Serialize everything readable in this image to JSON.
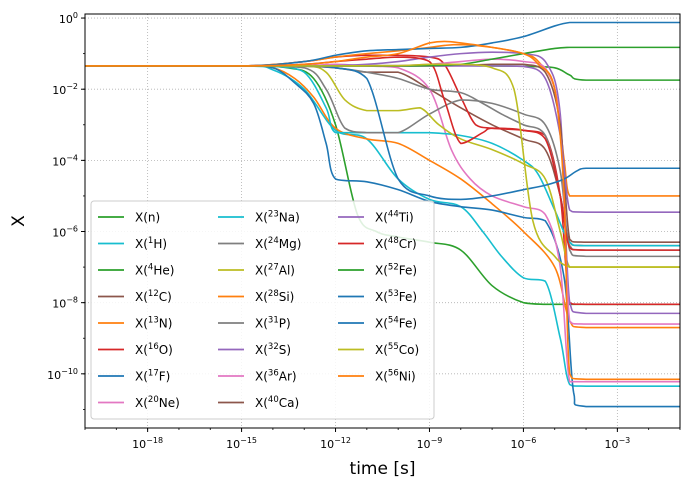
{
  "chart_data": {
    "type": "line",
    "title": "",
    "xlabel": "time [s]",
    "ylabel": "X",
    "xscale": "log",
    "yscale": "log",
    "xlim": [
      1e-20,
      0.1
    ],
    "ylim": [
      3e-12,
      1.3
    ],
    "x_ticks": [
      {
        "value": 1e-18,
        "base": "10",
        "exp": "−18"
      },
      {
        "value": 1e-15,
        "base": "10",
        "exp": "−15"
      },
      {
        "value": 1e-12,
        "base": "10",
        "exp": "−12"
      },
      {
        "value": 1e-09,
        "base": "10",
        "exp": "−9"
      },
      {
        "value": 1e-06,
        "base": "10",
        "exp": "−6"
      },
      {
        "value": 0.001,
        "base": "10",
        "exp": "−3"
      }
    ],
    "y_ticks": [
      {
        "value": 1,
        "base": "10",
        "exp": "0"
      },
      {
        "value": 0.01,
        "base": "10",
        "exp": "−2"
      },
      {
        "value": 0.0001,
        "base": "10",
        "exp": "−4"
      },
      {
        "value": 1e-06,
        "base": "10",
        "exp": "−6"
      },
      {
        "value": 1e-08,
        "base": "10",
        "exp": "−8"
      },
      {
        "value": 1e-10,
        "base": "10",
        "exp": "−10"
      }
    ],
    "grid": true,
    "legend_position": "lower-left",
    "legend_columns": 3,
    "series": [
      {
        "name": "X(n)",
        "label_pre": "X(n)",
        "label_sup": "",
        "label_post": "",
        "color": "#2ca02c",
        "x": [
          1e-20,
          1e-15,
          3e-14,
          2e-13,
          1e-12,
          5e-12,
          2e-11,
          1e-10,
          1e-09,
          1e-08,
          1e-07,
          1e-06,
          5e-06,
          2e-05,
          4e-05,
          0.1
        ],
        "y": [
          0.045,
          0.045,
          0.04,
          0.02,
          0.001,
          3e-06,
          1e-06,
          7e-07,
          5e-07,
          3e-07,
          3e-08,
          1e-08,
          9e-09,
          9e-09,
          9e-09,
          9e-09
        ]
      },
      {
        "name": "X(1H)",
        "label_pre": "X(",
        "label_sup": "1",
        "label_post": "H)",
        "color": "#17becf",
        "x": [
          1e-20,
          1e-15,
          1e-14,
          1e-13,
          1e-12,
          1e-11,
          1e-10,
          1e-09,
          1e-08,
          5e-08,
          2e-07,
          1e-06,
          5e-06,
          1.5e-05,
          3e-05,
          0.0001,
          0.1
        ],
        "y": [
          0.045,
          0.045,
          0.035,
          0.01,
          0.0007,
          0.0004,
          3e-05,
          8e-06,
          5e-06,
          1e-06,
          2e-07,
          5e-08,
          4e-08,
          1e-09,
          5e-11,
          4.5e-11,
          4.5e-11
        ]
      },
      {
        "name": "X(4He)",
        "label_pre": "X(",
        "label_sup": "4",
        "label_post": "He)",
        "color": "#2ca02c",
        "x": [
          1e-20,
          1e-15,
          1e-13,
          1e-12,
          1e-10,
          1e-09,
          1e-08,
          1e-07,
          1e-06,
          1e-05,
          3e-05,
          0.0001,
          0.1
        ],
        "y": [
          0.045,
          0.045,
          0.045,
          0.046,
          0.046,
          0.047,
          0.046,
          0.045,
          0.044,
          0.04,
          0.025,
          0.018,
          0.018
        ]
      },
      {
        "name": "X(12C)",
        "label_pre": "X(",
        "label_sup": "12",
        "label_post": "C)",
        "color": "#8c564b",
        "x": [
          1e-20,
          1e-15,
          1e-13,
          1e-12,
          1e-11,
          1e-10,
          1e-09,
          1e-08,
          1e-07,
          1e-06,
          5e-06,
          1.5e-05,
          3e-05,
          0.0001,
          0.1
        ],
        "y": [
          0.045,
          0.045,
          0.044,
          0.04,
          0.03,
          0.03,
          0.01,
          0.003,
          0.001,
          0.0004,
          0.0002,
          1e-05,
          5e-07,
          4e-07,
          4e-07
        ]
      },
      {
        "name": "X(13N)",
        "label_pre": "X(",
        "label_sup": "13",
        "label_post": "N)",
        "color": "#ff7f0e",
        "x": [
          1e-20,
          1e-15,
          1e-14,
          5e-14,
          2e-13,
          1e-12,
          1e-11,
          1e-10,
          1e-09,
          1e-08,
          1e-07,
          1e-06,
          1e-05,
          3e-05,
          0.0001,
          0.1
        ],
        "y": [
          0.045,
          0.045,
          0.04,
          0.02,
          0.006,
          0.0008,
          0.0004,
          0.0003,
          0.0001,
          3e-05,
          6e-06,
          1e-06,
          1e-07,
          3e-09,
          2e-09,
          2e-09
        ]
      },
      {
        "name": "X(16O)",
        "label_pre": "X(",
        "label_sup": "16",
        "label_post": "O)",
        "color": "#d62728",
        "x": [
          1e-20,
          1e-15,
          1e-13,
          1e-12,
          1e-11,
          1e-10,
          1e-09,
          3e-09,
          1e-08,
          3e-08,
          1e-07,
          1e-06,
          5e-06,
          1.5e-05,
          3e-05,
          0.0001,
          0.1
        ],
        "y": [
          0.045,
          0.045,
          0.06,
          0.08,
          0.09,
          0.09,
          0.08,
          0.05,
          0.006,
          0.001,
          0.0008,
          0.0007,
          0.0005,
          1e-05,
          1e-08,
          9e-09,
          9e-09
        ]
      },
      {
        "name": "X(17F)",
        "label_pre": "X(",
        "label_sup": "17",
        "label_post": "F)",
        "color": "#1f77b4",
        "x": [
          1e-20,
          1e-15,
          1e-14,
          5e-14,
          2e-13,
          5e-13,
          1e-12,
          1e-11,
          1e-10,
          1e-09,
          1e-08,
          1e-07,
          1e-06,
          5e-06,
          2e-05,
          4e-05,
          0.0001,
          0.1
        ],
        "y": [
          0.045,
          0.045,
          0.04,
          0.015,
          0.004,
          0.0003,
          3e-05,
          2.5e-05,
          1.5e-05,
          7e-06,
          5e-06,
          4e-06,
          2.5e-06,
          2e-06,
          5e-08,
          3e-11,
          1.2e-11,
          1.2e-11
        ]
      },
      {
        "name": "X(20Ne)",
        "label_pre": "X(",
        "label_sup": "20",
        "label_post": "Ne)",
        "color": "#e377c2",
        "x": [
          1e-20,
          1e-15,
          1e-13,
          1e-12,
          1e-11,
          1e-10,
          1e-09,
          5e-09,
          2e-08,
          1e-07,
          1e-06,
          5e-06,
          1.5e-05,
          3e-05,
          0.0001,
          0.1
        ],
        "y": [
          0.045,
          0.045,
          0.046,
          0.05,
          0.045,
          0.04,
          0.01,
          0.0002,
          3e-05,
          1e-05,
          5e-06,
          3e-06,
          1e-07,
          6e-11,
          6e-11,
          6e-11
        ]
      },
      {
        "name": "X(23Na)",
        "label_pre": "X(",
        "label_sup": "23",
        "label_post": "Na)",
        "color": "#17becf",
        "x": [
          1e-20,
          1e-15,
          1e-14,
          1e-13,
          5e-13,
          1e-12,
          1e-11,
          1e-10,
          1e-09,
          1e-08,
          1e-07,
          1e-06,
          3e-06,
          1e-05,
          3e-05,
          0.0001,
          0.1
        ],
        "y": [
          0.045,
          0.045,
          0.044,
          0.03,
          0.003,
          0.0006,
          0.0006,
          0.0006,
          0.0006,
          0.0005,
          0.0003,
          0.0001,
          4e-05,
          4e-06,
          5e-07,
          4e-07,
          4e-07
        ]
      },
      {
        "name": "X(24Mg)",
        "label_pre": "X(",
        "label_sup": "24",
        "label_post": "Mg)",
        "color": "#7f7f7f",
        "x": [
          1e-20,
          1e-15,
          1e-13,
          5e-13,
          2e-12,
          1e-11,
          1e-10,
          1e-09,
          1e-08,
          1e-07,
          1e-06,
          5e-06,
          1.5e-05,
          3e-05,
          0.0001,
          0.1
        ],
        "y": [
          0.045,
          0.045,
          0.04,
          0.01,
          0.0008,
          0.0006,
          0.0006,
          0.002,
          0.005,
          0.004,
          0.002,
          0.001,
          5e-05,
          3e-07,
          2e-07,
          2e-07
        ]
      },
      {
        "name": "X(27Al)",
        "label_pre": "X(",
        "label_sup": "27",
        "label_post": "Al)",
        "color": "#bcbd22",
        "x": [
          1e-20,
          1e-15,
          1e-13,
          5e-13,
          2e-12,
          1e-11,
          1e-10,
          5e-10,
          2e-09,
          1e-08,
          1e-07,
          1e-06,
          5e-06,
          1.5e-05,
          3e-05,
          0.0001,
          0.1
        ],
        "y": [
          0.045,
          0.045,
          0.045,
          0.03,
          0.005,
          0.0025,
          0.0025,
          0.003,
          0.001,
          0.0004,
          0.0002,
          8e-05,
          3e-05,
          1e-06,
          1e-07,
          1e-07,
          1e-07
        ]
      },
      {
        "name": "X(28Si)",
        "label_pre": "X(",
        "label_sup": "28",
        "label_post": "Si)",
        "color": "#ff7f0e",
        "x": [
          1e-20,
          1e-15,
          1e-13,
          1e-12,
          1e-11,
          1e-10,
          1e-09,
          3e-09,
          1e-08,
          1e-07,
          1e-06,
          3e-06,
          1e-05,
          2e-05,
          3e-05,
          0.0001,
          0.1
        ],
        "y": [
          0.045,
          0.045,
          0.06,
          0.08,
          0.1,
          0.12,
          0.15,
          0.17,
          0.18,
          0.15,
          0.1,
          0.06,
          0.01,
          0.0001,
          1e-05,
          1e-05,
          1e-05
        ]
      },
      {
        "name": "X(31P)",
        "label_pre": "X(",
        "label_sup": "31",
        "label_post": "P)",
        "color": "#7f7f7f",
        "x": [
          1e-20,
          1e-15,
          1e-13,
          1e-12,
          1e-11,
          1e-10,
          1e-09,
          1e-08,
          5e-08,
          2e-07,
          1e-06,
          5e-06,
          1.5e-05,
          3e-05,
          0.0001,
          0.1
        ],
        "y": [
          0.045,
          0.045,
          0.045,
          0.04,
          0.03,
          0.02,
          0.01,
          0.008,
          0.004,
          0.002,
          0.001,
          0.0005,
          1e-05,
          4e-07,
          3e-07,
          3e-07
        ]
      },
      {
        "name": "X(32S)",
        "label_pre": "X(",
        "label_sup": "32",
        "label_post": "S)",
        "color": "#9467bd",
        "x": [
          1e-20,
          1e-15,
          1e-13,
          1e-12,
          1e-11,
          1e-10,
          1e-09,
          1e-08,
          1e-07,
          1e-06,
          5e-06,
          1.5e-05,
          3e-05,
          0.0001,
          0.1
        ],
        "y": [
          0.045,
          0.045,
          0.045,
          0.046,
          0.05,
          0.06,
          0.08,
          0.1,
          0.11,
          0.1,
          0.06,
          0.002,
          1e-08,
          5e-09,
          5e-09
        ]
      },
      {
        "name": "X(36Ar)",
        "label_pre": "X(",
        "label_sup": "36",
        "label_post": "Ar)",
        "color": "#e377c2",
        "x": [
          1e-20,
          1e-15,
          1e-13,
          1e-12,
          1e-11,
          1e-10,
          1e-09,
          1e-08,
          1e-07,
          1e-06,
          5e-06,
          1.5e-05,
          3e-05,
          0.0001,
          0.1
        ],
        "y": [
          0.045,
          0.045,
          0.045,
          0.045,
          0.046,
          0.046,
          0.05,
          0.06,
          0.07,
          0.06,
          0.04,
          0.001,
          3e-09,
          2.5e-09,
          2.5e-09
        ]
      },
      {
        "name": "X(40Ca)",
        "label_pre": "X(",
        "label_sup": "40",
        "label_post": "Ca)",
        "color": "#8c564b",
        "x": [
          1e-20,
          1e-15,
          1e-12,
          1e-10,
          1e-09,
          1e-08,
          1e-07,
          1e-06,
          5e-06,
          1.5e-05,
          3e-05,
          0.0001,
          0.1
        ],
        "y": [
          0.045,
          0.045,
          0.045,
          0.045,
          0.045,
          0.046,
          0.05,
          0.05,
          0.03,
          0.001,
          6e-07,
          5e-07,
          5e-07
        ]
      },
      {
        "name": "X(44Ti)",
        "label_pre": "X(",
        "label_sup": "44",
        "label_post": "Ti)",
        "color": "#9467bd",
        "x": [
          1e-20,
          1e-15,
          1e-12,
          1e-10,
          1e-09,
          1e-08,
          1e-07,
          1e-06,
          5e-06,
          1.5e-05,
          3e-05,
          0.0001,
          0.1
        ],
        "y": [
          0.045,
          0.045,
          0.045,
          0.045,
          0.045,
          0.045,
          0.045,
          0.044,
          0.02,
          0.0005,
          4e-06,
          3.5e-06,
          3.5e-06
        ]
      },
      {
        "name": "X(48Cr)",
        "label_pre": "X(",
        "label_sup": "48",
        "label_post": "Cr)",
        "color": "#d62728",
        "x": [
          1e-20,
          1e-15,
          1e-13,
          1e-12,
          1e-11,
          1e-10,
          1e-09,
          3e-09,
          1e-08,
          5e-08,
          1e-07,
          1e-06,
          5e-06,
          1.5e-05,
          3e-05,
          0.0001,
          0.1
        ],
        "y": [
          0.045,
          0.045,
          0.05,
          0.06,
          0.07,
          0.08,
          0.06,
          0.005,
          0.0003,
          0.0006,
          0.0008,
          0.0007,
          0.0004,
          1e-05,
          3.5e-07,
          3e-07,
          3e-07
        ]
      },
      {
        "name": "X(52Fe)",
        "label_pre": "X(",
        "label_sup": "52",
        "label_post": "Fe)",
        "color": "#2ca02c",
        "x": [
          1e-20,
          1e-15,
          1e-12,
          1e-10,
          1e-09,
          1e-08,
          1e-07,
          1e-06,
          1e-05,
          3e-05,
          0.0001,
          0.001,
          0.1
        ],
        "y": [
          0.045,
          0.045,
          0.045,
          0.045,
          0.046,
          0.05,
          0.07,
          0.1,
          0.14,
          0.15,
          0.15,
          0.15,
          0.15
        ]
      },
      {
        "name": "X(53Fe)",
        "label_pre": "X(",
        "label_sup": "53",
        "label_post": "Fe)",
        "color": "#1f77b4",
        "x": [
          1e-20,
          1e-15,
          1e-13,
          1e-12,
          1e-11,
          1e-10,
          1e-09,
          1e-08,
          1e-07,
          1e-06,
          5e-06,
          2e-05,
          5e-05,
          0.0001,
          0.001,
          0.1
        ],
        "y": [
          0.045,
          0.045,
          0.045,
          0.04,
          0.02,
          3e-05,
          1e-05,
          8e-06,
          1e-05,
          1.5e-05,
          2e-05,
          3e-05,
          5e-05,
          6e-05,
          6e-05,
          6e-05
        ]
      },
      {
        "name": "X(54Fe)",
        "label_pre": "X(",
        "label_sup": "54",
        "label_post": "Fe)",
        "color": "#1f77b4",
        "x": [
          1e-20,
          1e-15,
          1e-13,
          1e-12,
          1e-11,
          1e-10,
          1e-09,
          1e-08,
          1e-07,
          1e-06,
          1e-05,
          3e-05,
          0.0001,
          0.001,
          0.1
        ],
        "y": [
          0.045,
          0.045,
          0.06,
          0.09,
          0.12,
          0.13,
          0.14,
          0.15,
          0.2,
          0.3,
          0.6,
          0.75,
          0.75,
          0.75,
          0.75
        ]
      },
      {
        "name": "X(55Co)",
        "label_pre": "X(",
        "label_sup": "55",
        "label_post": "Co)",
        "color": "#bcbd22",
        "x": [
          1e-20,
          1e-15,
          1e-12,
          1e-10,
          1e-09,
          1e-08,
          1e-07,
          5e-07,
          2e-06,
          1e-05,
          3e-05,
          0.0001,
          0.001,
          0.1
        ],
        "y": [
          0.045,
          0.045,
          0.045,
          0.046,
          0.05,
          0.05,
          0.04,
          0.01,
          2e-06,
          2e-07,
          1e-07,
          1e-07,
          1e-07,
          1e-07
        ]
      },
      {
        "name": "X(56Ni)",
        "label_pre": "X(",
        "label_sup": "56",
        "label_post": "Ni)",
        "color": "#ff7f0e",
        "x": [
          1e-20,
          1e-15,
          1e-13,
          1e-12,
          1e-11,
          1e-10,
          1e-09,
          3e-09,
          1e-08,
          1e-07,
          1e-06,
          3e-06,
          1e-05,
          2e-05,
          3e-05,
          0.0001,
          0.1
        ],
        "y": [
          0.045,
          0.045,
          0.05,
          0.06,
          0.08,
          0.1,
          0.2,
          0.22,
          0.2,
          0.15,
          0.1,
          0.05,
          0.01,
          1e-05,
          1e-10,
          7e-11,
          7e-11
        ]
      }
    ]
  }
}
